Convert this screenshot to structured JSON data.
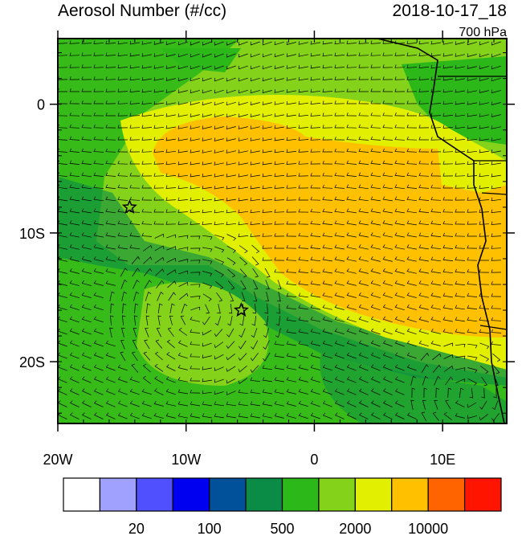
{
  "map": {
    "title": "Aerosol Number (#/cc)",
    "time": "2018-10-17_18",
    "level": "700 hPa",
    "xlim": [
      -20,
      15
    ],
    "ylim": [
      -24.8,
      5.1
    ],
    "xticks": [
      {
        "value": -20,
        "label": "20W"
      },
      {
        "value": -10,
        "label": "10W"
      },
      0,
      {
        "value": 10,
        "label": "10E"
      }
    ],
    "yticks": [
      0,
      {
        "value": -10,
        "label": "10S"
      },
      {
        "value": -20,
        "label": "20S"
      }
    ],
    "markers": [
      {
        "lon": -14.4,
        "lat": -8.0
      },
      {
        "lon": -5.7,
        "lat": -16.0
      }
    ],
    "colorbar": {
      "colors": [
        "#ffffff",
        "#a0a0ff",
        "#5050ff",
        "#0000f0",
        "#00509a",
        "#0a8c46",
        "#2db81a",
        "#85d21a",
        "#e2f000",
        "#ffc000",
        "#ff6400",
        "#ff1400"
      ],
      "ticks": [
        20,
        100,
        500,
        2000,
        10000
      ]
    }
  }
}
